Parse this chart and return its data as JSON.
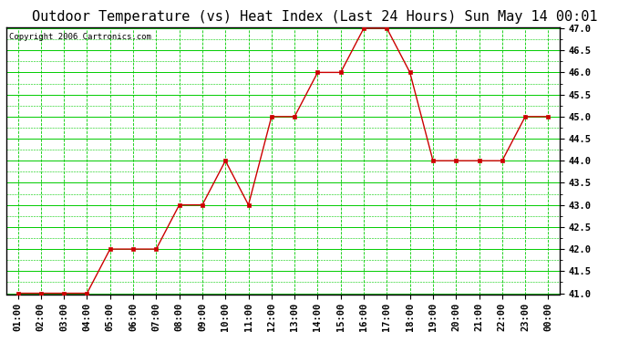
{
  "title": "Outdoor Temperature (vs) Heat Index (Last 24 Hours) Sun May 14 00:01",
  "copyright": "Copyright 2006 Cartronics.com",
  "x_labels": [
    "01:00",
    "02:00",
    "03:00",
    "04:00",
    "05:00",
    "06:00",
    "07:00",
    "08:00",
    "09:00",
    "10:00",
    "11:00",
    "12:00",
    "13:00",
    "14:00",
    "15:00",
    "16:00",
    "17:00",
    "18:00",
    "19:00",
    "20:00",
    "21:00",
    "22:00",
    "23:00",
    "00:00"
  ],
  "y_values": [
    41.0,
    41.0,
    41.0,
    41.0,
    42.0,
    42.0,
    42.0,
    43.0,
    43.0,
    44.0,
    43.0,
    45.0,
    45.0,
    46.0,
    46.0,
    47.0,
    47.0,
    46.0,
    44.0,
    44.0,
    44.0,
    44.0,
    45.0,
    45.0
  ],
  "y_min": 41.0,
  "y_max": 47.0,
  "y_step": 0.5,
  "line_color": "#cc0000",
  "marker_color": "#cc0000",
  "bg_color": "#ffffff",
  "plot_bg_color": "#ffffff",
  "grid_color_h": "#00cc00",
  "grid_color_v": "#00cc00",
  "title_fontsize": 11,
  "copyright_fontsize": 6.5,
  "tick_fontsize": 7.5,
  "tick_fontweight": "bold"
}
